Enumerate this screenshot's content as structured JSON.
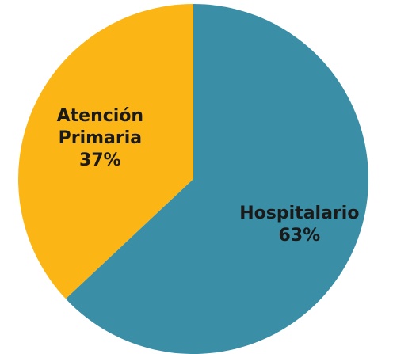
{
  "chart_data": {
    "type": "pie",
    "categories": [
      "Hospitalario",
      "Atención Primaria"
    ],
    "values": [
      63,
      37
    ],
    "value_labels": [
      "63%",
      "37%"
    ],
    "colors": [
      "#3a8fa6",
      "#fbb616"
    ]
  }
}
